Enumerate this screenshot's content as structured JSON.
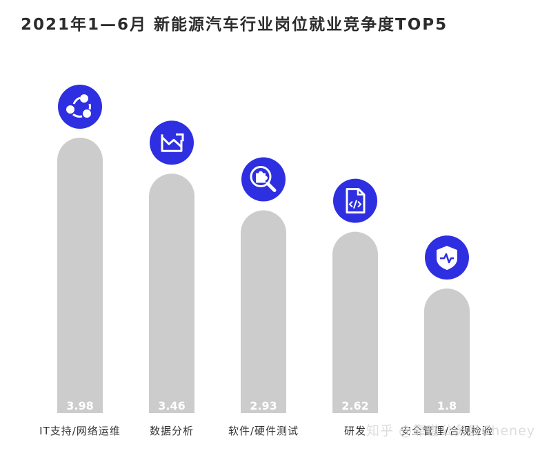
{
  "colors": {
    "bar": "#cccccc",
    "icon_bg": "#2d2fe0",
    "icon_fg": "#ffffff",
    "title": "#2b2b2b"
  },
  "watermark": "知乎 @靠谱公务员Cheney",
  "chart_data": {
    "type": "bar",
    "title": "2021年1—6月 新能源汽车行业岗位就业竞争度TOP5",
    "categories": [
      "IT支持/网络运维",
      "数据分析",
      "软件/硬件测试",
      "研发",
      "安全管理/合规检验"
    ],
    "values": [
      3.98,
      3.46,
      2.93,
      2.62,
      1.8
    ],
    "value_labels": [
      "3.98",
      "3.46",
      "2.93",
      "2.62",
      "1.8"
    ],
    "icons": [
      "share-network-icon",
      "trend-chart-icon",
      "puzzle-search-icon",
      "code-file-icon",
      "shield-pulse-icon"
    ],
    "ylim": [
      0,
      4.2
    ],
    "grid": false,
    "legend": "none"
  }
}
